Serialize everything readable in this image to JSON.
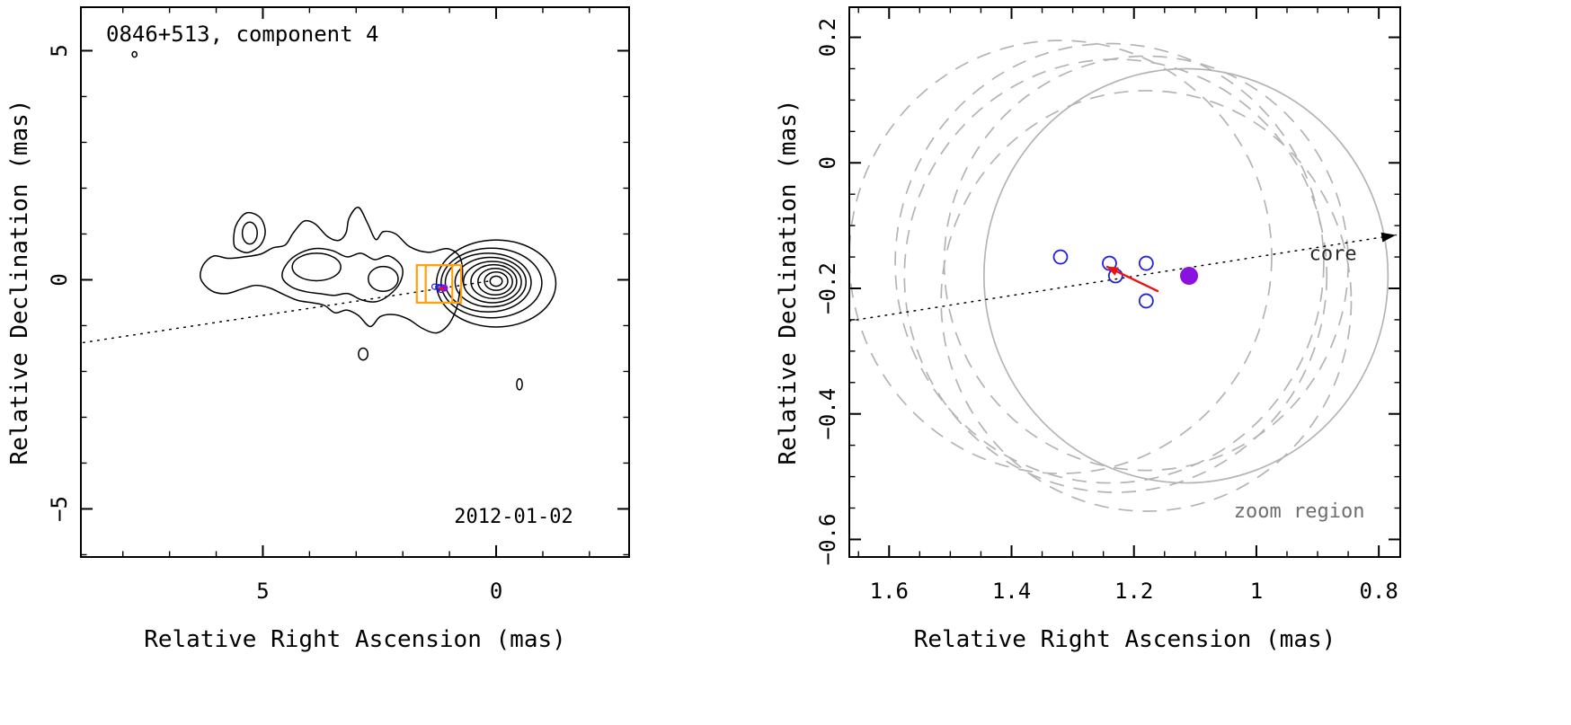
{
  "figure": {
    "background": "#ffffff",
    "source_name": "0846+513"
  },
  "colors": {
    "contour": "#000000",
    "frame": "#000000",
    "epoch_blue": "#2121de",
    "current_purple": "#8a12e0",
    "arrow_red": "#ee1111",
    "zoom_box": "#ffa10a",
    "beam_gray": "#b4b4b4",
    "core_label": "#2b2b2b",
    "zoom_label": "#6e6e6e"
  },
  "chart_data": [
    {
      "type": "contour_map",
      "panel": "left",
      "title": "0846+513, component 4",
      "xlabel": "Relative Right Ascension (mas)",
      "ylabel": "Relative Declination (mas)",
      "x_range_lr": [
        8.9,
        -2.85
      ],
      "y_range_tb": [
        5.95,
        -6.05
      ],
      "x_ticks": [
        {
          "v": 5,
          "label": "5"
        },
        {
          "v": 0,
          "label": "0"
        }
      ],
      "y_ticks": [
        {
          "v": 5,
          "label": "5"
        },
        {
          "v": 0,
          "label": "0"
        },
        {
          "v": -5,
          "label": "−5"
        }
      ],
      "x_minor_step": 1,
      "y_minor_step": 1,
      "annotations": [
        {
          "text": "2012-01-02",
          "x": -1.65,
          "y": -5.3,
          "anchor": "end",
          "color": "#000000",
          "size": 22
        }
      ],
      "ridge_line": {
        "from": [
          8.85,
          -1.37
        ],
        "to": [
          0.1,
          -0.02
        ],
        "arrow": false
      },
      "zoom_boxes": [
        {
          "ra_left": 1.7,
          "ra_right": 0.94,
          "dec_top": 0.32,
          "dec_bottom": -0.5
        },
        {
          "ra_left": 1.51,
          "ra_right": 0.75,
          "dec_top": 0.32,
          "dec_bottom": -0.5
        }
      ],
      "contour_ellipses": [
        {
          "c": [
            0.0,
            -0.03
          ],
          "r": [
            0.13,
            0.11
          ]
        },
        {
          "c": [
            0.0,
            -0.03
          ],
          "r": [
            0.25,
            0.2
          ]
        },
        {
          "c": [
            0.02,
            -0.04
          ],
          "r": [
            0.37,
            0.29
          ]
        },
        {
          "c": [
            0.05,
            -0.04
          ],
          "r": [
            0.49,
            0.37
          ]
        },
        {
          "c": [
            0.08,
            -0.05
          ],
          "r": [
            0.62,
            0.45
          ]
        },
        {
          "c": [
            0.12,
            -0.05
          ],
          "r": [
            0.76,
            0.54
          ]
        },
        {
          "c": [
            0.17,
            -0.06
          ],
          "r": [
            0.92,
            0.64
          ]
        },
        {
          "c": [
            0.1,
            -0.07
          ],
          "r": [
            1.08,
            0.76
          ]
        },
        {
          "c": [
            0.0,
            -0.08
          ],
          "r": [
            1.28,
            0.95
          ]
        },
        {
          "c": [
            3.85,
            0.28
          ],
          "r": [
            0.52,
            0.3
          ]
        },
        {
          "c": [
            2.42,
            0.02
          ],
          "r": [
            0.32,
            0.27
          ]
        },
        {
          "c": [
            5.28,
            1.02
          ],
          "r": [
            0.16,
            0.24
          ]
        },
        {
          "c": [
            7.75,
            4.92
          ],
          "r": [
            0.05,
            0.06
          ]
        },
        {
          "c": [
            2.85,
            -1.62
          ],
          "r": [
            0.1,
            0.13
          ]
        },
        {
          "c": [
            -0.5,
            -2.28
          ],
          "r": [
            0.06,
            0.12
          ]
        }
      ],
      "contour_paths": [
        [
          [
            0.78,
            0.5
          ],
          [
            1.05,
            0.68
          ],
          [
            1.45,
            0.6
          ],
          [
            1.85,
            0.72
          ],
          [
            2.15,
            1.0
          ],
          [
            2.42,
            1.05
          ],
          [
            2.58,
            0.88
          ],
          [
            2.75,
            1.22
          ],
          [
            2.95,
            1.58
          ],
          [
            3.15,
            1.35
          ],
          [
            3.22,
            1.02
          ],
          [
            3.38,
            0.86
          ],
          [
            3.62,
            0.95
          ],
          [
            3.88,
            1.22
          ],
          [
            4.12,
            1.28
          ],
          [
            4.35,
            1.02
          ],
          [
            4.52,
            0.76
          ],
          [
            4.78,
            0.7
          ],
          [
            5.05,
            0.56
          ],
          [
            5.4,
            0.5
          ],
          [
            5.75,
            0.47
          ],
          [
            6.05,
            0.52
          ],
          [
            6.28,
            0.32
          ],
          [
            6.33,
            0.02
          ],
          [
            6.1,
            -0.24
          ],
          [
            5.78,
            -0.3
          ],
          [
            5.45,
            -0.2
          ],
          [
            5.15,
            -0.12
          ],
          [
            4.85,
            -0.18
          ],
          [
            4.55,
            -0.32
          ],
          [
            4.25,
            -0.45
          ],
          [
            3.95,
            -0.5
          ],
          [
            3.68,
            -0.56
          ],
          [
            3.45,
            -0.72
          ],
          [
            3.2,
            -0.66
          ],
          [
            2.95,
            -0.78
          ],
          [
            2.7,
            -1.02
          ],
          [
            2.48,
            -0.8
          ],
          [
            2.18,
            -0.76
          ],
          [
            1.88,
            -0.86
          ],
          [
            1.58,
            -1.06
          ],
          [
            1.28,
            -1.16
          ],
          [
            1.04,
            -1.0
          ],
          [
            0.86,
            -0.66
          ],
          [
            0.78,
            -0.28
          ],
          [
            0.72,
            0.1
          ]
        ],
        [
          [
            2.02,
            0.28
          ],
          [
            2.3,
            0.52
          ],
          [
            2.6,
            0.44
          ],
          [
            2.9,
            0.58
          ],
          [
            3.2,
            0.5
          ],
          [
            3.52,
            0.64
          ],
          [
            3.9,
            0.68
          ],
          [
            4.28,
            0.54
          ],
          [
            4.52,
            0.3
          ],
          [
            4.58,
            0.04
          ],
          [
            4.38,
            -0.16
          ],
          [
            4.08,
            -0.26
          ],
          [
            3.78,
            -0.3
          ],
          [
            3.48,
            -0.34
          ],
          [
            3.18,
            -0.3
          ],
          [
            2.88,
            -0.44
          ],
          [
            2.58,
            -0.48
          ],
          [
            2.3,
            -0.34
          ],
          [
            2.06,
            -0.06
          ]
        ],
        [
          [
            5.62,
            0.78
          ],
          [
            5.58,
            1.18
          ],
          [
            5.35,
            1.46
          ],
          [
            5.06,
            1.36
          ],
          [
            4.95,
            1.05
          ],
          [
            5.05,
            0.76
          ],
          [
            5.3,
            0.6
          ],
          [
            5.5,
            0.64
          ]
        ]
      ],
      "epoch_points": [
        [
          1.32,
          -0.15
        ],
        [
          1.24,
          -0.16
        ],
        [
          1.23,
          -0.18
        ],
        [
          1.18,
          -0.16
        ],
        [
          1.18,
          -0.22
        ]
      ],
      "current_point": [
        1.11,
        -0.18
      ],
      "motion_arrow": {
        "from": [
          1.16,
          -0.205
        ],
        "to": [
          1.245,
          -0.165
        ]
      },
      "marker_radius": 3
    },
    {
      "type": "scatter",
      "panel": "right",
      "title": "",
      "xlabel": "Relative Right Ascension (mas)",
      "ylabel": "Relative Declination (mas)",
      "x_range_lr": [
        1.665,
        0.765
      ],
      "y_range_tb": [
        0.248,
        -0.628
      ],
      "x_ticks": [
        {
          "v": 1.6,
          "label": "1.6"
        },
        {
          "v": 1.4,
          "label": "1.4"
        },
        {
          "v": 1.2,
          "label": "1.2"
        },
        {
          "v": 1.0,
          "label": "1"
        },
        {
          "v": 0.8,
          "label": "0.8"
        }
      ],
      "y_ticks": [
        {
          "v": 0.2,
          "label": "0.2"
        },
        {
          "v": 0.0,
          "label": "0"
        },
        {
          "v": -0.2,
          "label": "−0.2"
        },
        {
          "v": -0.4,
          "label": "−0.4"
        },
        {
          "v": -0.6,
          "label": "−0.6"
        }
      ],
      "x_minor_step": 0.05,
      "y_minor_step": 0.05,
      "annotations": [
        {
          "text": "core",
          "x": 0.875,
          "y": -0.155,
          "anchor": "middle",
          "color": "#2b2b2b",
          "size": 22
        },
        {
          "text": "zoom region",
          "x": 0.93,
          "y": -0.565,
          "anchor": "middle",
          "color": "#6e6e6e",
          "size": 22
        }
      ],
      "ridge_line": {
        "from": [
          1.665,
          -0.252
        ],
        "to": [
          0.772,
          -0.115
        ],
        "arrow": true
      },
      "beam_circles_dashed": [
        {
          "c": [
            1.32,
            -0.15
          ],
          "r": 0.345
        },
        {
          "c": [
            1.24,
            -0.16
          ],
          "r": 0.35
        },
        {
          "c": [
            1.23,
            -0.18
          ],
          "r": 0.345
        },
        {
          "c": [
            1.18,
            -0.16
          ],
          "r": 0.33
        },
        {
          "c": [
            1.18,
            -0.22
          ],
          "r": 0.335
        }
      ],
      "beam_circle_solid": {
        "c": [
          1.115,
          -0.18
        ],
        "r": 0.33
      },
      "epoch_points": [
        [
          1.32,
          -0.15
        ],
        [
          1.24,
          -0.16
        ],
        [
          1.23,
          -0.18
        ],
        [
          1.18,
          -0.16
        ],
        [
          1.18,
          -0.22
        ]
      ],
      "current_point": [
        1.11,
        -0.18
      ],
      "motion_arrow": {
        "from": [
          1.16,
          -0.205
        ],
        "to": [
          1.245,
          -0.165
        ]
      },
      "marker_radius": 7.5
    }
  ]
}
